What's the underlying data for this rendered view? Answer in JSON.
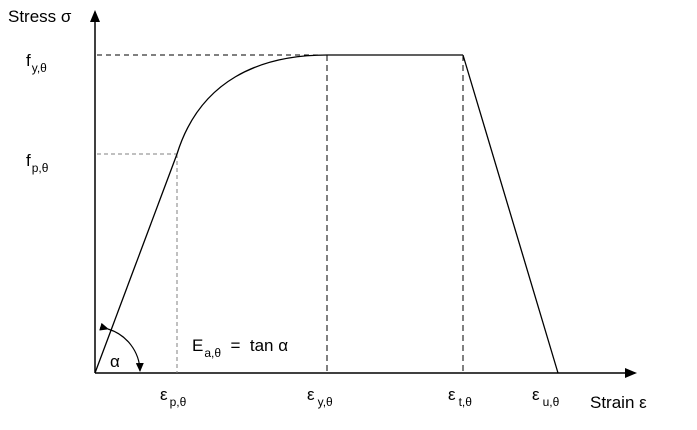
{
  "chart_data": {
    "type": "line",
    "title": "",
    "ylabel": "Stress σ",
    "xlabel": "Strain ε",
    "y_ticks": [
      {
        "main": "f",
        "sub": "y,θ"
      },
      {
        "main": "f",
        "sub": "p,θ"
      }
    ],
    "x_ticks": [
      {
        "main": "ε",
        "sub": "p,θ"
      },
      {
        "main": "ε",
        "sub": "y,θ"
      },
      {
        "main": "ε",
        "sub": "t,θ"
      },
      {
        "main": "ε",
        "sub": "u,θ"
      }
    ],
    "series": [
      {
        "segments": [
          {
            "shape": "linear",
            "from": "origin",
            "to": "proportional limit (ε p,θ , f p,θ)"
          },
          {
            "shape": "elliptical",
            "from": "proportional limit (ε p,θ , f p,θ)",
            "to": "yield (ε y,θ , f y,θ)"
          },
          {
            "shape": "plateau",
            "from": "yield (ε y,θ , f y,θ)",
            "to": "(ε t,θ , f y,θ)"
          },
          {
            "shape": "linear descending",
            "from": "(ε t,θ , f y,θ)",
            "to": "(ε u,θ , 0)"
          }
        ]
      }
    ],
    "annotations": [
      {
        "text": "E",
        "sub": "a,θ",
        "suffix": "  =  tan α"
      },
      {
        "text": "α"
      }
    ],
    "grid": false,
    "colors": {
      "curve": "#000000",
      "guide_dashed": "#000000",
      "guide_gray": "#808080"
    }
  }
}
